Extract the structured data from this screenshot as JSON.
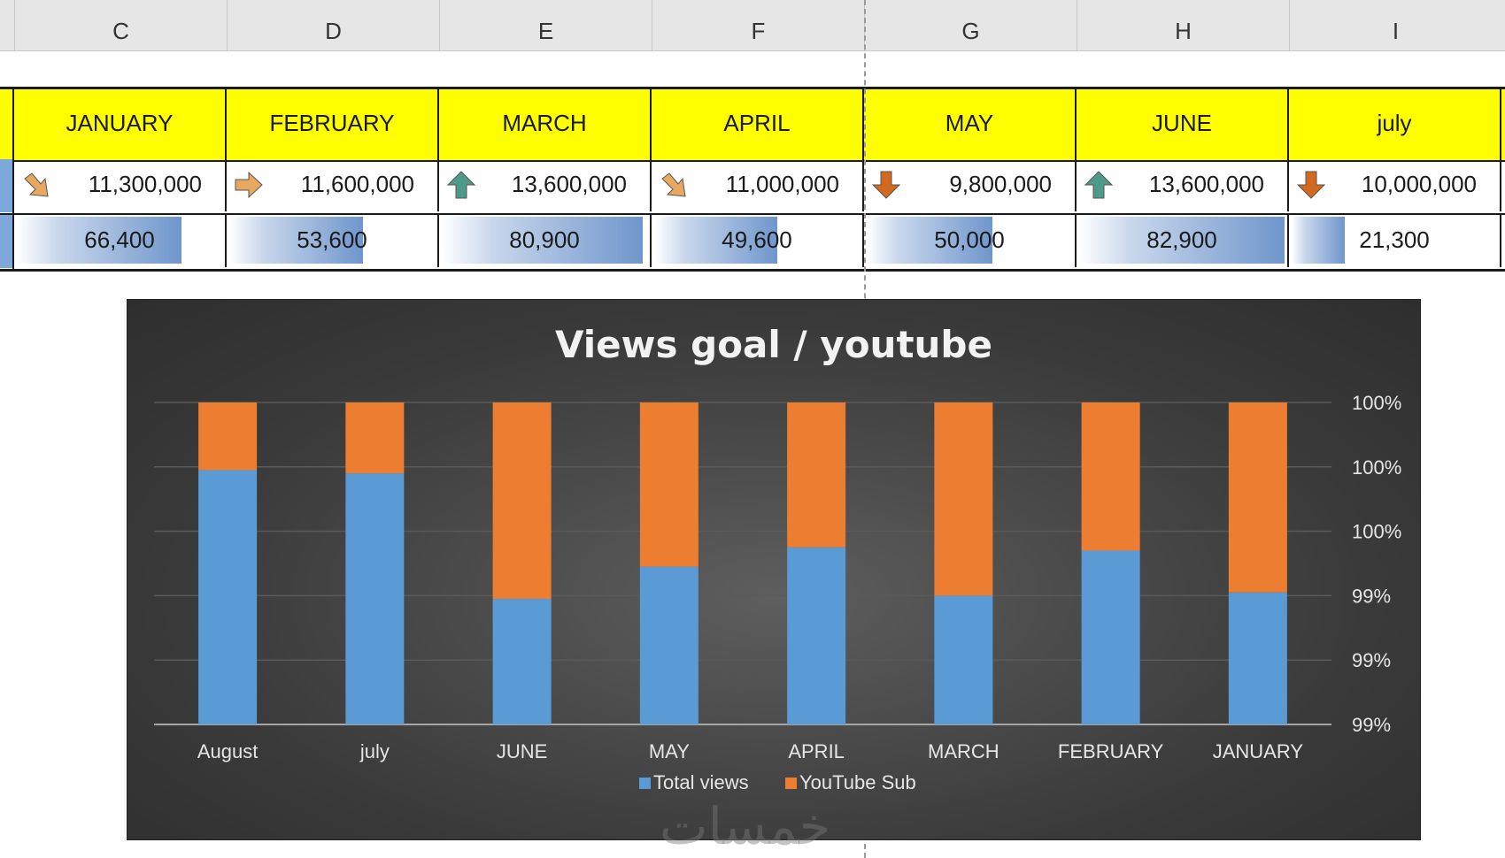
{
  "columns": [
    "C",
    "D",
    "E",
    "F",
    "G",
    "H",
    "I"
  ],
  "months": [
    "JANUARY",
    "FEBRUARY",
    "MARCH",
    "APRIL",
    "MAY",
    "JUNE",
    "july"
  ],
  "views": [
    {
      "value": "11,300,000",
      "arrow": "arrow-down-right-icon",
      "color": "#e8a860"
    },
    {
      "value": "11,600,000",
      "arrow": "arrow-right-icon",
      "color": "#e8a860"
    },
    {
      "value": "13,600,000",
      "arrow": "arrow-up-icon",
      "color": "#4e9a88"
    },
    {
      "value": "11,000,000",
      "arrow": "arrow-down-right-icon",
      "color": "#e8a860"
    },
    {
      "value": "9,800,000",
      "arrow": "arrow-down-icon",
      "color": "#d2691e"
    },
    {
      "value": "13,600,000",
      "arrow": "arrow-up-icon",
      "color": "#4e9a88"
    },
    {
      "value": "10,000,000",
      "arrow": "arrow-down-icon",
      "color": "#d2691e"
    }
  ],
  "subs": [
    {
      "value": "66,400",
      "fill": 0.8
    },
    {
      "value": "53,600",
      "fill": 0.65
    },
    {
      "value": "80,900",
      "fill": 0.98
    },
    {
      "value": "49,600",
      "fill": 0.6
    },
    {
      "value": "50,000",
      "fill": 0.61
    },
    {
      "value": "82,900",
      "fill": 1.0
    },
    {
      "value": "21,300",
      "fill": 0.26
    }
  ],
  "colors": {
    "header_fill": "#ffff00",
    "views_series": "#5b9bd5",
    "subs_series": "#ed7d31"
  },
  "watermark": "خمسات",
  "chart_data": {
    "type": "bar",
    "stacked": "percent",
    "title": "Views goal / youtube",
    "categories": [
      "August",
      "july",
      "JUNE",
      "MAY",
      "APRIL",
      "MARCH",
      "FEBRUARY",
      "JANUARY"
    ],
    "series": [
      {
        "name": "Total views",
        "color": "#5b9bd5",
        "values": [
          99.79,
          99.78,
          99.39,
          99.49,
          99.55,
          99.4,
          99.54,
          99.41
        ]
      },
      {
        "name": "YouTube Sub",
        "color": "#ed7d31",
        "values": [
          0.21,
          0.22,
          0.61,
          0.51,
          0.45,
          0.6,
          0.46,
          0.59
        ]
      }
    ],
    "y_tick_labels": [
      "100%",
      "100%",
      "100%",
      "99%",
      "99%",
      "99%"
    ],
    "ylim": [
      99,
      100
    ],
    "y_axis_position": "right",
    "grid": true,
    "legend": "bottom"
  }
}
